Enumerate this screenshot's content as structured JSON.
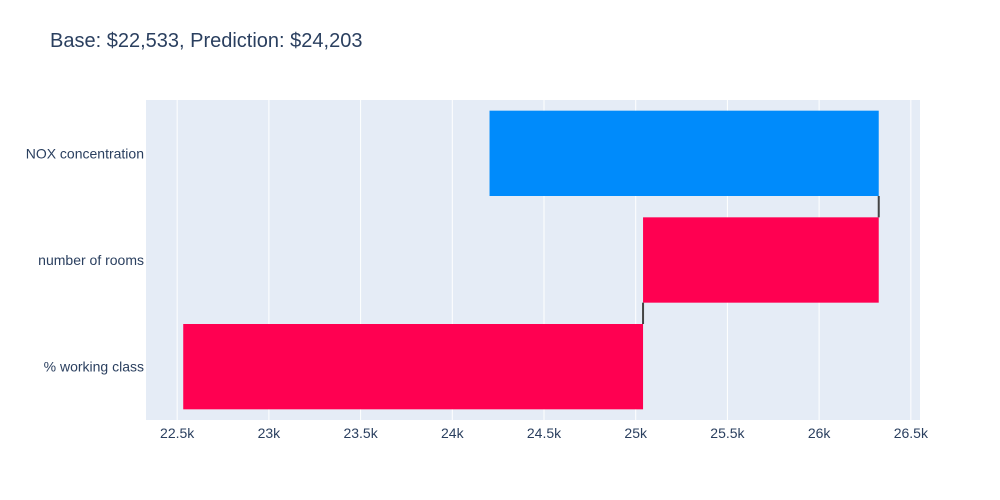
{
  "chart_data": {
    "type": "bar",
    "orientation": "horizontal",
    "subtype": "waterfall",
    "title": "Base: $22,533, Prediction: $24,203",
    "xlabel": "",
    "ylabel": "",
    "xlim": [
      22330,
      26550
    ],
    "grid": true,
    "categories": [
      "NOX concentration",
      "number of rooms",
      "% working class"
    ],
    "bars": [
      {
        "label": "NOX concentration",
        "start": 26325,
        "end": 24203,
        "direction": "decrease",
        "color": "#008bfb"
      },
      {
        "label": "number of rooms",
        "start": 25040,
        "end": 26325,
        "direction": "increase",
        "color": "#ff0051"
      },
      {
        "label": "% working class",
        "start": 22533,
        "end": 25040,
        "direction": "increase",
        "color": "#ff0051"
      }
    ],
    "x_ticks": [
      {
        "value": 22500,
        "label": "22.5k"
      },
      {
        "value": 23000,
        "label": "23k"
      },
      {
        "value": 23500,
        "label": "23.5k"
      },
      {
        "value": 24000,
        "label": "24k"
      },
      {
        "value": 24500,
        "label": "24.5k"
      },
      {
        "value": 25000,
        "label": "25k"
      },
      {
        "value": 25500,
        "label": "25.5k"
      },
      {
        "value": 26000,
        "label": "26k"
      },
      {
        "value": 26500,
        "label": "26.5k"
      }
    ],
    "colors": {
      "plot_background": "#e5ecf6",
      "grid": "#ffffff",
      "text": "#2a3f5f",
      "connector": "#444444"
    }
  }
}
